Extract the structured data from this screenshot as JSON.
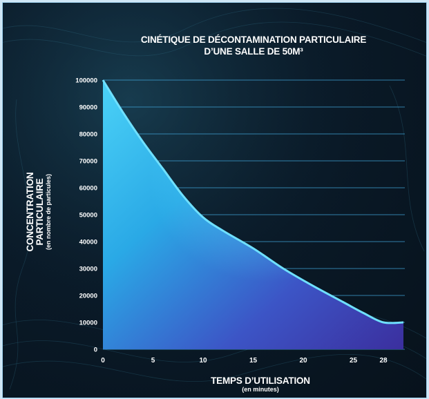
{
  "chart_data": {
    "type": "area",
    "title_lines": [
      "CINÉTIQUE DE DÉCONTAMINATION PARTICULAIRE",
      "D’UNE SALLE DE 50M³"
    ],
    "ylabel_lines": [
      "CONCENTRATION",
      "PARTICULAIRE"
    ],
    "ylabel_sub": "(en nombre de particules)",
    "xlabel": "TEMPS D’UTILISATION",
    "xlabel_sub": "(en minutes)",
    "ylim": [
      0,
      100000
    ],
    "y_ticks": [
      0,
      10000,
      20000,
      30000,
      40000,
      50000,
      60000,
      70000,
      80000,
      90000,
      100000
    ],
    "y_tick_labels": [
      "0",
      "10000",
      "20000",
      "30000",
      "40000",
      "50000",
      "60000",
      "70000",
      "80000",
      "90000",
      "100000"
    ],
    "x_ticks": [
      0,
      5,
      10,
      15,
      20,
      25,
      28
    ],
    "x_tick_labels": [
      "0",
      "5",
      "10",
      "15",
      "20",
      "25",
      "28"
    ],
    "xlim": [
      0,
      30
    ],
    "grid": "horizontal",
    "series": [
      {
        "x": [
          0,
          2,
          4,
          6,
          8,
          10,
          12,
          15,
          18,
          21,
          24,
          26,
          28,
          30
        ],
        "y": [
          100000,
          88000,
          77000,
          67000,
          57000,
          49000,
          44000,
          37500,
          30000,
          23500,
          17500,
          13500,
          10000,
          10000
        ]
      }
    ],
    "colors": {
      "line": "#6fe0ff",
      "fill_top": "#39c7f2",
      "fill_bottom": "#3a3fae"
    }
  }
}
